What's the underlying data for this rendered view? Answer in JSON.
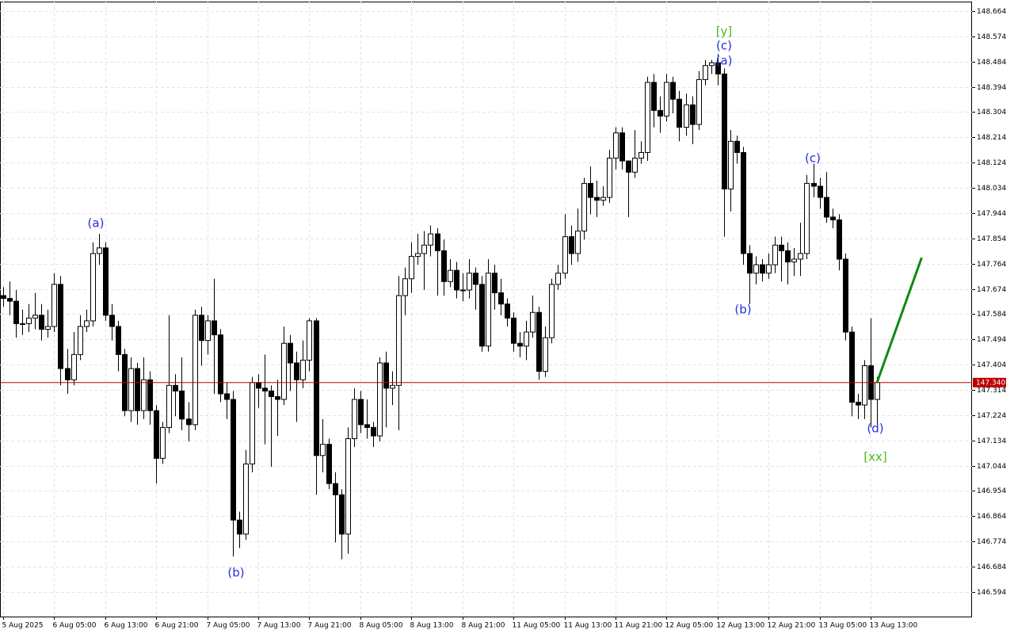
{
  "chart_data": {
    "type": "candlestick",
    "categories": [
      "5 Aug 2025",
      null,
      null,
      null,
      null,
      null,
      null,
      null,
      "6 Aug 05:00",
      null,
      null,
      null,
      null,
      null,
      null,
      null,
      "6 Aug 13:00",
      null,
      null,
      null,
      null,
      null,
      null,
      null,
      "6 Aug 21:00",
      null,
      null,
      null,
      null,
      null,
      null,
      null,
      "7 Aug 05:00",
      null,
      null,
      null,
      null,
      null,
      null,
      null,
      "7 Aug 13:00",
      null,
      null,
      null,
      null,
      null,
      null,
      null,
      "7 Aug 21:00",
      null,
      null,
      null,
      null,
      null,
      null,
      null,
      "8 Aug 05:00",
      null,
      null,
      null,
      null,
      null,
      null,
      null,
      "8 Aug 13:00",
      null,
      null,
      null,
      null,
      null,
      null,
      null,
      "8 Aug 21:00",
      null,
      null,
      null,
      null,
      null,
      null,
      null,
      "11 Aug 05:00",
      null,
      null,
      null,
      null,
      null,
      null,
      null,
      "11 Aug 13:00",
      null,
      null,
      null,
      null,
      null,
      null,
      null,
      "11 Aug 21:00",
      null,
      null,
      null,
      null,
      null,
      null,
      null,
      "12 Aug 05:00",
      null,
      null,
      null,
      null,
      null,
      null,
      null,
      "12 Aug 13:00",
      null,
      null,
      null,
      null,
      null,
      null,
      null,
      "12 Aug 21:00",
      null,
      null,
      null,
      null,
      null,
      null,
      null,
      "13 Aug 05:00",
      null,
      null,
      null,
      null,
      null,
      null,
      null,
      "13 Aug 13:00",
      null
    ],
    "open": [
      147.65,
      147.64,
      147.63,
      147.55,
      147.55,
      147.57,
      147.58,
      147.53,
      147.54,
      147.69,
      147.39,
      147.35,
      147.44,
      147.54,
      147.56,
      147.8,
      147.82,
      147.58,
      147.54,
      147.44,
      147.24,
      147.39,
      147.24,
      147.35,
      147.24,
      147.07,
      147.18,
      147.33,
      147.31,
      147.21,
      147.19,
      147.58,
      147.49,
      147.56,
      147.51,
      147.3,
      147.28,
      146.85,
      146.8,
      147.05,
      147.34,
      147.32,
      147.31,
      147.29,
      147.28,
      147.48,
      147.41,
      147.35,
      147.42,
      147.56,
      147.08,
      147.12,
      146.98,
      146.94,
      146.8,
      147.14,
      147.28,
      147.19,
      147.18,
      147.15,
      147.41,
      147.32,
      147.33,
      147.65,
      147.71,
      147.79,
      147.8,
      147.83,
      147.87,
      147.81,
      147.7,
      147.74,
      147.67,
      147.67,
      147.73,
      147.69,
      147.47,
      147.73,
      147.66,
      147.62,
      147.57,
      147.48,
      147.47,
      147.52,
      147.59,
      147.38,
      147.5,
      147.69,
      147.73,
      147.86,
      147.8,
      147.88,
      148.05,
      148.0,
      147.99,
      148.0,
      148.14,
      148.23,
      148.13,
      148.09,
      148.14,
      148.16,
      148.41,
      148.31,
      148.29,
      148.41,
      148.35,
      148.25,
      148.33,
      148.26,
      148.42,
      148.47,
      148.48,
      148.44,
      148.03,
      148.2,
      148.16,
      147.8,
      147.73,
      147.76,
      147.73,
      147.76,
      147.83,
      147.81,
      147.77,
      147.78,
      147.8,
      148.05,
      148.04,
      148.0,
      147.93,
      147.92,
      147.78,
      147.52,
      147.27,
      147.26,
      147.4,
      147.28
    ],
    "high": [
      147.68,
      147.7,
      147.67,
      147.6,
      147.62,
      147.66,
      147.62,
      147.6,
      147.73,
      147.72,
      147.46,
      147.52,
      147.58,
      147.6,
      147.84,
      147.87,
      147.84,
      147.62,
      147.56,
      147.46,
      147.43,
      147.41,
      147.43,
      147.38,
      147.26,
      147.2,
      147.58,
      147.37,
      147.43,
      147.27,
      147.6,
      147.61,
      147.58,
      147.71,
      147.53,
      147.34,
      147.31,
      146.88,
      147.1,
      147.36,
      147.37,
      147.44,
      147.33,
      147.35,
      147.54,
      147.51,
      147.45,
      147.49,
      147.57,
      147.57,
      147.21,
      147.14,
      147.02,
      146.96,
      147.18,
      147.32,
      147.31,
      147.28,
      147.2,
      147.43,
      147.45,
      147.38,
      147.72,
      147.75,
      147.84,
      147.87,
      147.88,
      147.9,
      147.89,
      147.85,
      147.78,
      147.77,
      147.73,
      147.78,
      147.75,
      147.72,
      147.78,
      147.76,
      147.71,
      147.64,
      147.59,
      147.52,
      147.56,
      147.65,
      147.61,
      147.54,
      147.71,
      147.76,
      147.94,
      147.9,
      147.96,
      148.07,
      148.11,
      148.06,
      148.04,
      148.17,
      148.25,
      148.25,
      148.13,
      148.24,
      148.2,
      148.43,
      148.44,
      148.36,
      148.44,
      148.43,
      148.38,
      148.37,
      148.36,
      148.45,
      148.49,
      148.49,
      148.51,
      148.46,
      148.24,
      148.22,
      148.18,
      147.83,
      147.79,
      147.78,
      147.8,
      147.86,
      147.86,
      147.84,
      147.82,
      147.91,
      148.08,
      148.12,
      148.07,
      148.09,
      147.96,
      147.94,
      147.8,
      147.54,
      147.3,
      147.42,
      147.57,
      147.36
    ],
    "low": [
      147.61,
      147.58,
      147.5,
      147.51,
      147.52,
      147.53,
      147.49,
      147.5,
      147.52,
      147.33,
      147.3,
      147.33,
      147.42,
      147.52,
      147.54,
      147.76,
      147.56,
      147.49,
      147.38,
      147.22,
      147.2,
      147.19,
      147.21,
      147.19,
      146.98,
      147.05,
      147.16,
      147.22,
      147.17,
      147.13,
      147.17,
      147.4,
      147.44,
      147.3,
      147.27,
      147.21,
      146.72,
      146.75,
      146.78,
      147.02,
      147.25,
      147.12,
      147.04,
      147.15,
      147.26,
      147.31,
      147.2,
      147.32,
      147.38,
      146.94,
      147.02,
      146.96,
      146.77,
      146.71,
      146.73,
      147.11,
      147.16,
      147.14,
      147.11,
      147.13,
      147.18,
      147.26,
      147.17,
      147.58,
      147.66,
      147.76,
      147.67,
      147.79,
      147.65,
      147.65,
      147.68,
      147.64,
      147.63,
      147.64,
      147.6,
      147.45,
      147.45,
      147.6,
      147.58,
      147.54,
      147.45,
      147.43,
      147.42,
      147.5,
      147.35,
      147.36,
      147.48,
      147.67,
      147.71,
      147.76,
      147.77,
      147.85,
      147.94,
      147.93,
      147.97,
      147.98,
      148.1,
      148.1,
      147.93,
      148.07,
      148.12,
      148.13,
      148.25,
      148.23,
      148.27,
      148.3,
      148.2,
      148.22,
      148.19,
      148.24,
      148.4,
      148.44,
      148.4,
      147.86,
      147.95,
      148.12,
      147.76,
      147.62,
      147.69,
      147.7,
      147.71,
      147.73,
      147.7,
      147.69,
      147.72,
      147.72,
      147.78,
      148.0,
      147.96,
      147.91,
      147.89,
      147.74,
      147.49,
      147.22,
      147.21,
      147.21,
      147.18,
      147.19
    ],
    "close": [
      147.64,
      147.63,
      147.55,
      147.55,
      147.57,
      147.58,
      147.53,
      147.54,
      147.69,
      147.39,
      147.35,
      147.44,
      147.54,
      147.56,
      147.8,
      147.82,
      147.58,
      147.54,
      147.44,
      147.24,
      147.39,
      147.24,
      147.35,
      147.24,
      147.07,
      147.18,
      147.33,
      147.31,
      147.21,
      147.19,
      147.58,
      147.49,
      147.56,
      147.51,
      147.3,
      147.28,
      146.85,
      146.8,
      147.05,
      147.34,
      147.32,
      147.31,
      147.29,
      147.28,
      147.48,
      147.41,
      147.35,
      147.42,
      147.56,
      147.08,
      147.12,
      146.98,
      146.94,
      146.8,
      147.14,
      147.28,
      147.19,
      147.18,
      147.15,
      147.41,
      147.32,
      147.33,
      147.65,
      147.71,
      147.79,
      147.8,
      147.83,
      147.87,
      147.81,
      147.7,
      147.74,
      147.67,
      147.67,
      147.73,
      147.69,
      147.47,
      147.73,
      147.66,
      147.62,
      147.57,
      147.48,
      147.47,
      147.52,
      147.59,
      147.38,
      147.5,
      147.69,
      147.73,
      147.86,
      147.8,
      147.88,
      148.05,
      148.0,
      147.99,
      148.0,
      148.14,
      148.23,
      148.13,
      148.09,
      148.14,
      148.16,
      148.41,
      148.31,
      148.29,
      148.41,
      148.35,
      148.25,
      148.33,
      148.26,
      148.42,
      148.47,
      148.48,
      148.44,
      148.03,
      148.2,
      148.16,
      147.8,
      147.73,
      147.76,
      147.73,
      147.76,
      147.83,
      147.81,
      147.77,
      147.78,
      147.8,
      148.05,
      148.04,
      148.0,
      147.93,
      147.92,
      147.78,
      147.52,
      147.27,
      147.26,
      147.4,
      147.28,
      147.34
    ],
    "up_color": "#ffffff",
    "down_color": "#000000",
    "xlim": [
      -0.5,
      151.9
    ],
    "ylim": [
      146.506,
      148.698
    ],
    "yticks": [
      148.664,
      148.574,
      148.484,
      148.394,
      148.304,
      148.214,
      148.124,
      148.034,
      147.944,
      147.854,
      147.764,
      147.674,
      147.584,
      147.494,
      147.404,
      147.314,
      147.224,
      147.134,
      147.044,
      146.954,
      146.864,
      146.774,
      146.684,
      146.594
    ],
    "grid": true,
    "current_price": {
      "value": 147.34,
      "label": "147.340",
      "color": "#c00000"
    },
    "projection": {
      "x": [
        137,
        144
      ],
      "values": [
        147.34,
        147.785
      ],
      "color": "#0f8a0f"
    },
    "annotations": [
      {
        "text": "(a)",
        "color": "#2230d8"
      },
      {
        "text": "(b)",
        "color": "#2230d8"
      },
      {
        "text": "[y]",
        "color": "#4cbb17"
      },
      {
        "text": "(c)",
        "color": "#2230d8"
      },
      {
        "text": "(a)",
        "color": "#2230d8"
      },
      {
        "text": "(c)",
        "color": "#2230d8"
      },
      {
        "text": "(b)",
        "color": "#2230d8"
      },
      {
        "text": "(d)",
        "color": "#2230d8"
      },
      {
        "text": "[xx]",
        "color": "#4cbb17"
      }
    ]
  }
}
